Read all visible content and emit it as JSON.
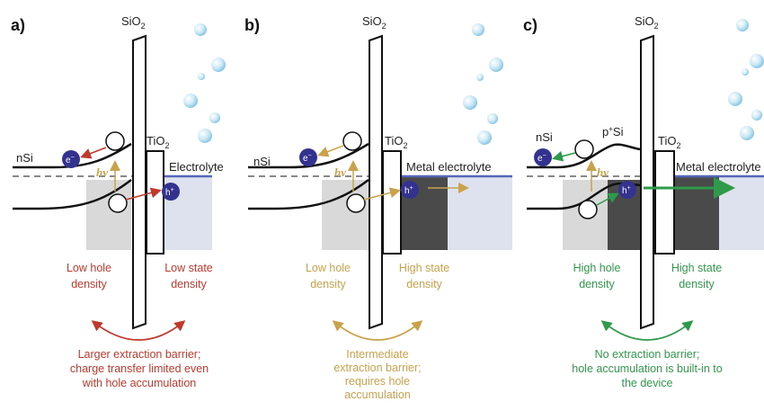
{
  "colors": {
    "red": "#c0392b",
    "gold": "#c9a24a",
    "green": "#2e9a4a",
    "carrier_fill": "#33338f",
    "metal_fill": "#4a4a4a",
    "electrolyte_fill": "#dde2ee",
    "depletion_fill": "#d9d9d9",
    "bubble": "#9fd3ea"
  },
  "panels": [
    {
      "letter": "a)",
      "sio2": "SiO",
      "sio2_sub": "2",
      "semi": "nSi",
      "tio2": "TiO",
      "tio2_sub": "2",
      "electrolyte": "Electrolyte",
      "electron": "e",
      "electron_sup": "−",
      "hole": "h",
      "hole_sup": "+",
      "hv": "hν",
      "left_density": [
        "Low hole",
        "density"
      ],
      "right_density": [
        "Low state",
        "density"
      ],
      "caption": [
        "Larger extraction barrier;",
        "charge transfer limited even",
        "with hole accumulation"
      ]
    },
    {
      "letter": "b)",
      "sio2": "SiO",
      "sio2_sub": "2",
      "semi": "nSi",
      "tio2": "TiO",
      "tio2_sub": "2",
      "electrolyte": "Metal electrolyte",
      "electron": "e",
      "electron_sup": "−",
      "hole": "h",
      "hole_sup": "+",
      "hv": "hν",
      "left_density": [
        "Low hole",
        "density"
      ],
      "right_density": [
        "High state",
        "density"
      ],
      "caption": [
        "Intermediate",
        "extraction barrier;",
        "requires hole",
        "accumulation"
      ]
    },
    {
      "letter": "c)",
      "sio2": "SiO",
      "sio2_sub": "2",
      "semi": "nSi",
      "psi": "p",
      "psi_sup": "+",
      "psi_rest": "Si",
      "tio2": "TiO",
      "tio2_sub": "2",
      "electrolyte": "Metal electrolyte",
      "electron": "e",
      "electron_sup": "−",
      "hole": "h",
      "hole_sup": "+",
      "hv": "hν",
      "left_density": [
        "High hole",
        "density"
      ],
      "right_density": [
        "High state",
        "density"
      ],
      "caption": [
        "No extraction barrier;",
        "hole accumulation is built-in to",
        "the device"
      ]
    }
  ]
}
